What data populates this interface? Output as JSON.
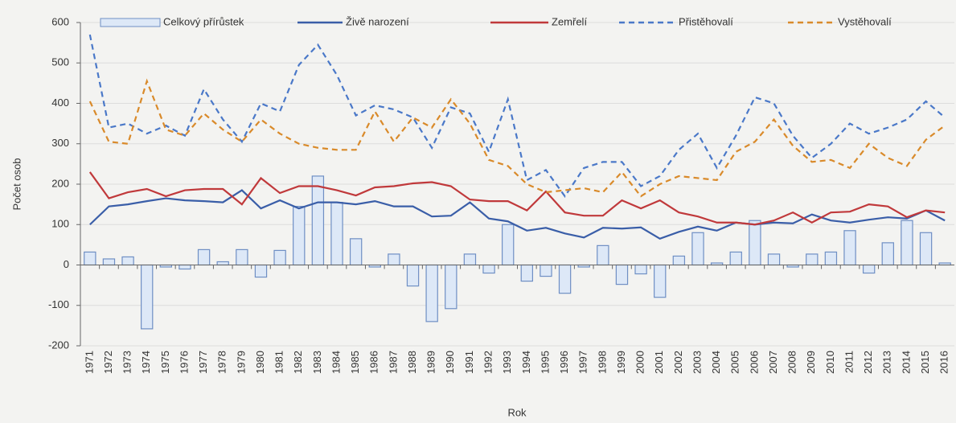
{
  "chart_data": {
    "type": "combo",
    "y_label": "Počet osob",
    "x_label": "Rok",
    "categories": [
      "1971",
      "1972",
      "1973",
      "1974",
      "1975",
      "1976",
      "1977",
      "1978",
      "1979",
      "1980",
      "1981",
      "1982",
      "1983",
      "1984",
      "1985",
      "1986",
      "1987",
      "1988",
      "1989",
      "1990",
      "1991",
      "1992",
      "1993",
      "1994",
      "1995",
      "1996",
      "1997",
      "1998",
      "1999",
      "2000",
      "2001",
      "2002",
      "2003",
      "2004",
      "2005",
      "2006",
      "2007",
      "2008",
      "2009",
      "2010",
      "2011",
      "2012",
      "2013",
      "2014",
      "2015",
      "2016"
    ],
    "ylim": [
      -200,
      600
    ],
    "yticks": [
      -200,
      -100,
      0,
      100,
      200,
      300,
      400,
      500,
      600
    ],
    "grid": true,
    "series": [
      {
        "name": "Celkový přírůstek",
        "type": "bar",
        "color": "#dde8f7",
        "edge": "#6f8fc4",
        "values": [
          32,
          15,
          20,
          -158,
          -5,
          -10,
          38,
          8,
          38,
          -30,
          36,
          145,
          220,
          155,
          65,
          -5,
          27,
          -52,
          -140,
          -108,
          27,
          -20,
          100,
          -40,
          -28,
          -70,
          -5,
          48,
          -48,
          -22,
          -80,
          22,
          80,
          5,
          32,
          110,
          27,
          -5,
          27,
          32,
          85,
          -20,
          55,
          110,
          80,
          5
        ]
      },
      {
        "name": "Živě narození",
        "type": "line",
        "color": "#3a5ea8",
        "dashed": false,
        "values": [
          100,
          145,
          150,
          158,
          165,
          160,
          158,
          155,
          185,
          140,
          160,
          140,
          155,
          155,
          150,
          158,
          145,
          145,
          120,
          122,
          155,
          115,
          108,
          85,
          92,
          78,
          68,
          92,
          90,
          93,
          65,
          82,
          95,
          85,
          105,
          100,
          105,
          103,
          125,
          110,
          105,
          112,
          118,
          115,
          135,
          110
        ]
      },
      {
        "name": "Zemřelí",
        "type": "line",
        "color": "#c0393b",
        "dashed": false,
        "values": [
          230,
          165,
          180,
          188,
          170,
          185,
          188,
          188,
          150,
          215,
          178,
          195,
          195,
          185,
          172,
          192,
          195,
          202,
          205,
          195,
          162,
          158,
          158,
          135,
          182,
          130,
          122,
          122,
          160,
          140,
          160,
          130,
          120,
          105,
          105,
          100,
          110,
          130,
          105,
          130,
          132,
          150,
          145,
          118,
          135,
          130
        ]
      },
      {
        "name": "Přistěhovalí",
        "type": "line",
        "color": "#4a78c8",
        "dashed": true,
        "values": [
          570,
          340,
          350,
          325,
          345,
          320,
          435,
          360,
          305,
          400,
          380,
          495,
          545,
          470,
          370,
          395,
          385,
          365,
          290,
          390,
          375,
          280,
          410,
          210,
          235,
          170,
          240,
          255,
          255,
          195,
          220,
          285,
          325,
          240,
          320,
          415,
          400,
          320,
          265,
          300,
          350,
          325,
          340,
          360,
          405,
          365
        ]
      },
      {
        "name": "Vystěhovalí",
        "type": "line",
        "color": "#d98a2a",
        "dashed": true,
        "values": [
          405,
          305,
          300,
          455,
          335,
          320,
          375,
          335,
          305,
          360,
          325,
          300,
          290,
          285,
          285,
          380,
          305,
          365,
          340,
          410,
          350,
          260,
          245,
          200,
          180,
          185,
          190,
          180,
          230,
          170,
          200,
          220,
          215,
          210,
          280,
          305,
          360,
          295,
          255,
          260,
          240,
          300,
          265,
          245,
          310,
          345
        ]
      }
    ]
  }
}
